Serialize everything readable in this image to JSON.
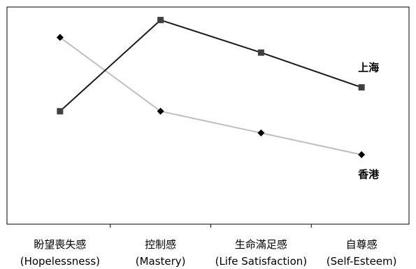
{
  "chart_data": {
    "type": "line",
    "categories": [
      {
        "label": "盼望喪失感",
        "sublabel": "(Hopelessness)"
      },
      {
        "label": "控制感",
        "sublabel": "(Mastery)"
      },
      {
        "label": "生命滿足感",
        "sublabel": "(Life Satisfaction)"
      },
      {
        "label": "自尊感",
        "sublabel": "(Self-Esteem)"
      }
    ],
    "ylim": [
      0,
      100
    ],
    "grid": false,
    "legend": "none",
    "series": [
      {
        "name": "上海",
        "values": [
          52,
          94,
          79,
          63
        ],
        "color": "#1a1a1a",
        "marker": "square",
        "marker_color": "#404040"
      },
      {
        "name": "香港",
        "values": [
          86,
          52,
          42,
          32
        ],
        "color": "#bfbfbf",
        "marker": "diamond",
        "marker_color": "#000000"
      }
    ]
  }
}
